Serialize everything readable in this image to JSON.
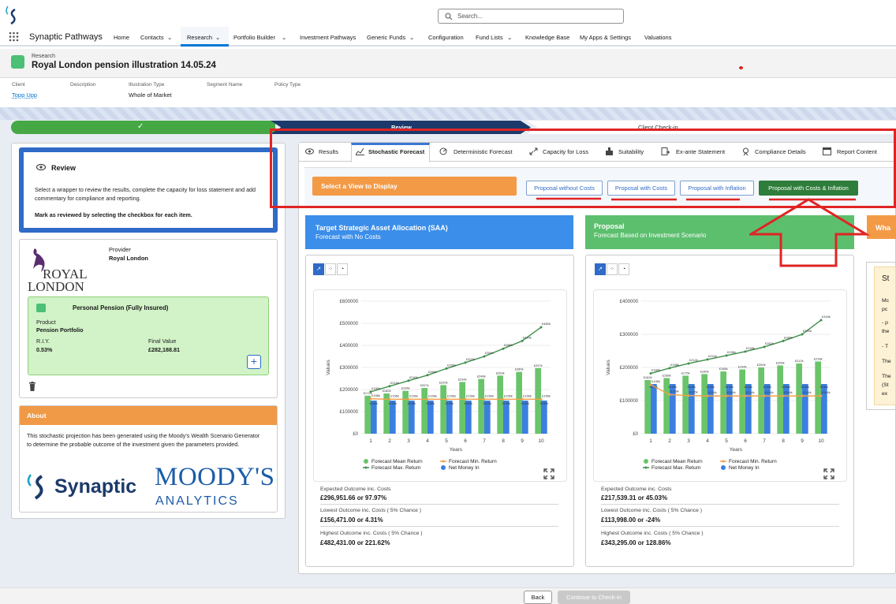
{
  "topbar": {
    "search_placeholder": "Search...",
    "app_name": "Synaptic Pathways"
  },
  "nav": {
    "items": [
      "Home",
      "Contacts",
      "Research",
      "Portfolio Builder",
      "Investment Pathways",
      "Generic Funds",
      "Configuration",
      "Fund Lists",
      "Knowledge Base",
      "My Apps & Settings",
      "Valuations"
    ],
    "active": "Research"
  },
  "record": {
    "object": "Research",
    "title": "Royal London pension illustration 14.05.24"
  },
  "fields": {
    "client_label": "Client",
    "client_value": "Topp Upp",
    "description_label": "Description",
    "illustration_type_label": "Illustration Type",
    "illustration_type_value": "Whole of Market",
    "segment_label": "Segment Name",
    "policy_label": "Policy Type"
  },
  "path": {
    "step2": "Review",
    "step3": "Client Check-in"
  },
  "review": {
    "title": "Review",
    "desc": "Select a wrapper to review the results, complete the capacity for loss statement and add commentary for compliance and reporting.",
    "bold": "Mark as reviewed by selecting the checkbox for each item."
  },
  "provider": {
    "label": "Provider",
    "value": "Royal London",
    "logo_text_1": "ROYAL",
    "logo_text_2": "LONDON",
    "wrapper_title": "Personal Pension (Fully Insured)",
    "product_label": "Product",
    "product_value": "Pension Portfolio",
    "riy_label": "R.I.Y.",
    "riy_value": "0.53%",
    "final_label": "Final Value",
    "final_value": "£282,188.81"
  },
  "about": {
    "title": "About",
    "desc": "This stochastic projection has been generated using the Moody's Wealth Scenario Generator to determine the probable outcome of the investment given the parameters provided.",
    "synaptic": "Synaptic",
    "moodys": "MOODY'S",
    "analytics": "ANALYTICS"
  },
  "tabs": [
    "Results",
    "Stochastic Forecast",
    "Deterministic Forecast",
    "Capacity for Loss",
    "Suitability",
    "Ex-ante Statement",
    "Compliance Details",
    "Report Content"
  ],
  "views": {
    "label": "Select a View to Display",
    "buttons": [
      "Proposal without Costs",
      "Proposal with Costs",
      "Proposal with Inflation",
      "Proposal with Costs & Inflation"
    ],
    "active": 3
  },
  "panels": {
    "left_title": "Target Strategic Asset Allocation (SAA)",
    "left_sub": "Forecast with No Costs",
    "right_title": "Proposal",
    "right_sub": "Forecast Based on Investment Scenario",
    "orange_title": "Wha",
    "side_title": "St",
    "side_lines": [
      "Mc",
      "pc",
      "- p",
      "the",
      "- T",
      "The",
      "The",
      "(St",
      "ex"
    ]
  },
  "legend": [
    "Forecast Mean Return",
    "Forecast Min. Return",
    "Forecast Max. Return",
    "Net Money In"
  ],
  "colors": {
    "mean": "#6ac46a",
    "min": "#f2a04a",
    "max": "#3f8f4a",
    "net": "#3b7fe0"
  },
  "chart_data": [
    {
      "type": "bar",
      "ylabel": "Values",
      "xlabel": "Years",
      "ylim": [
        0,
        600000
      ],
      "yticks": [
        "£0",
        "£100000",
        "£200000",
        "£300000",
        "£400000",
        "£500000",
        "£600000"
      ],
      "categories": [
        "1",
        "2",
        "3",
        "4",
        "5",
        "6",
        "7",
        "8",
        "9",
        "10"
      ],
      "series": [
        {
          "name": "Forecast Mean Return",
          "kind": "bar",
          "values": [
            172000,
            182000,
            194000,
            207000,
            220000,
            234000,
            248000,
            263000,
            280000,
            297000
          ],
          "labels": [
            "£172k",
            "£182k",
            "£194k",
            "£207k",
            "£220k",
            "£234k",
            "£248k",
            "£263k",
            "£280k",
            "£297k"
          ]
        },
        {
          "name": "Net Money In",
          "kind": "bar",
          "values": [
            150000,
            150000,
            150000,
            150000,
            150000,
            150000,
            150000,
            150000,
            150000,
            150000
          ],
          "labels": [
            "£150k",
            "£150k",
            "£150k",
            "£150k",
            "£150k",
            "£150k",
            "£150k",
            "£150k",
            "£150k",
            "£150k"
          ]
        },
        {
          "name": "Forecast Max. Return",
          "kind": "line",
          "values": [
            190000,
            215000,
            240000,
            265000,
            295000,
            322000,
            350000,
            385000,
            420000,
            482000
          ],
          "labels": [
            "£190k",
            "£215k",
            "£240k",
            "£265k",
            "£295k",
            "£322k",
            "£350k",
            "£385k",
            "£420k",
            "£482k"
          ]
        },
        {
          "name": "Forecast Min. Return",
          "kind": "line",
          "values": [
            158000,
            156000,
            156000,
            156000,
            156000,
            156000,
            156000,
            156000,
            156000,
            156000
          ],
          "labels": [
            "£158k",
            "£156k",
            "£156k",
            "£156k",
            "£156k",
            "£156k",
            "£156k",
            "£156k",
            "£156k",
            "£156k"
          ]
        }
      ]
    },
    {
      "type": "bar",
      "ylabel": "Values",
      "xlabel": "Years",
      "ylim": [
        0,
        400000
      ],
      "yticks": [
        "£0",
        "£100000",
        "£200000",
        "£300000",
        "£400000"
      ],
      "categories": [
        "1",
        "2",
        "3",
        "4",
        "5",
        "6",
        "7",
        "8",
        "9",
        "10"
      ],
      "series": [
        {
          "name": "Forecast Mean Return",
          "kind": "bar",
          "values": [
            162000,
            168000,
            175000,
            180000,
            188000,
            194000,
            200000,
            206000,
            212000,
            218000
          ],
          "labels": [
            "£162k",
            "£168k",
            "£175k",
            "£180k",
            "£188k",
            "£194k",
            "£200k",
            "£206k",
            "£212k",
            "£218k"
          ]
        },
        {
          "name": "Net Money In",
          "kind": "bar",
          "values": [
            150000,
            150000,
            150000,
            150000,
            150000,
            150000,
            150000,
            150000,
            150000,
            150000
          ],
          "labels": [
            "£150k",
            "£150k",
            "£150k",
            "£150k",
            "£150k",
            "£150k",
            "£150k",
            "£150k",
            "£150k",
            "£150k"
          ]
        },
        {
          "name": "Forecast Max. Return",
          "kind": "line",
          "values": [
            182000,
            198000,
            212000,
            224000,
            236000,
            248000,
            262000,
            280000,
            300000,
            343000
          ],
          "labels": [
            "£182k",
            "£198k",
            "£212k",
            "£224k",
            "£236k",
            "£248k",
            "£262k",
            "£280k",
            "£300k",
            "£343k"
          ]
        },
        {
          "name": "Forecast Min. Return",
          "kind": "line",
          "values": [
            148000,
            118000,
            115000,
            114000,
            114000,
            114000,
            114000,
            114000,
            114000,
            114000
          ],
          "labels": [
            "£148k",
            "£118k",
            "£115k",
            "£114k",
            "£114k",
            "£114k",
            "£114k",
            "£114k",
            "£114k",
            "£114k"
          ]
        }
      ]
    }
  ],
  "stats": [
    {
      "exp_label": "Expected Outcome inc. Costs",
      "exp_value": "£296,951.66 or 97.97%",
      "low_label": "Lowest Outcome inc. Costs ( 5% Chance )",
      "low_value": "£156,471.00 or 4.31%",
      "high_label": "Highest Outcome inc. Costs ( 5% Chance )",
      "high_value": "£482,431.00 or 221.62%"
    },
    {
      "exp_label": "Expected Outcome inc. Costs",
      "exp_value": "£217,539.31 or 45.03%",
      "low_label": "Lowest Outcome inc. Costs ( 5% Chance )",
      "low_value": "£113,998.00 or -24%",
      "high_label": "Highest Outcome inc. Costs ( 5% Chance )",
      "high_value": "£343,295.00 or 128.86%"
    }
  ],
  "footer": {
    "back": "Back",
    "continue": "Continue to Check-in"
  }
}
